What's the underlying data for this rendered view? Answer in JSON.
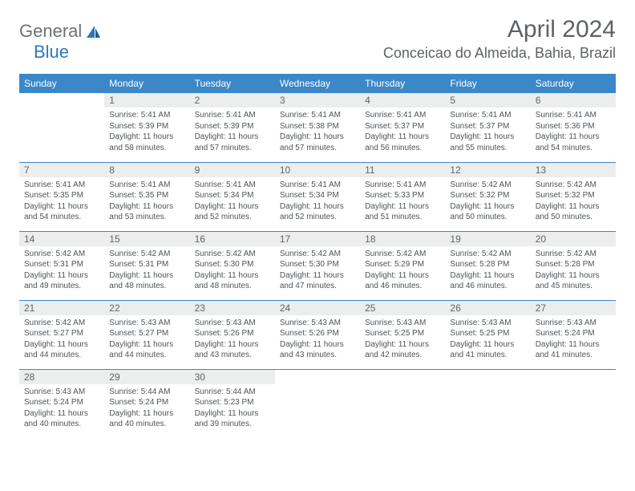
{
  "logo": {
    "general": "General",
    "blue": "Blue"
  },
  "title": "April 2024",
  "location": "Conceicao do Almeida, Bahia, Brazil",
  "colors": {
    "header_bg": "#3b87c8",
    "header_text": "#ffffff",
    "daynum_bg": "#eceded",
    "text": "#5d6268",
    "row_border": "#3b87c8"
  },
  "day_headers": [
    "Sunday",
    "Monday",
    "Tuesday",
    "Wednesday",
    "Thursday",
    "Friday",
    "Saturday"
  ],
  "weeks": [
    [
      {
        "n": "",
        "sr": "",
        "ss": "",
        "dl": ""
      },
      {
        "n": "1",
        "sr": "Sunrise: 5:41 AM",
        "ss": "Sunset: 5:39 PM",
        "dl": "Daylight: 11 hours and 58 minutes."
      },
      {
        "n": "2",
        "sr": "Sunrise: 5:41 AM",
        "ss": "Sunset: 5:39 PM",
        "dl": "Daylight: 11 hours and 57 minutes."
      },
      {
        "n": "3",
        "sr": "Sunrise: 5:41 AM",
        "ss": "Sunset: 5:38 PM",
        "dl": "Daylight: 11 hours and 57 minutes."
      },
      {
        "n": "4",
        "sr": "Sunrise: 5:41 AM",
        "ss": "Sunset: 5:37 PM",
        "dl": "Daylight: 11 hours and 56 minutes."
      },
      {
        "n": "5",
        "sr": "Sunrise: 5:41 AM",
        "ss": "Sunset: 5:37 PM",
        "dl": "Daylight: 11 hours and 55 minutes."
      },
      {
        "n": "6",
        "sr": "Sunrise: 5:41 AM",
        "ss": "Sunset: 5:36 PM",
        "dl": "Daylight: 11 hours and 54 minutes."
      }
    ],
    [
      {
        "n": "7",
        "sr": "Sunrise: 5:41 AM",
        "ss": "Sunset: 5:35 PM",
        "dl": "Daylight: 11 hours and 54 minutes."
      },
      {
        "n": "8",
        "sr": "Sunrise: 5:41 AM",
        "ss": "Sunset: 5:35 PM",
        "dl": "Daylight: 11 hours and 53 minutes."
      },
      {
        "n": "9",
        "sr": "Sunrise: 5:41 AM",
        "ss": "Sunset: 5:34 PM",
        "dl": "Daylight: 11 hours and 52 minutes."
      },
      {
        "n": "10",
        "sr": "Sunrise: 5:41 AM",
        "ss": "Sunset: 5:34 PM",
        "dl": "Daylight: 11 hours and 52 minutes."
      },
      {
        "n": "11",
        "sr": "Sunrise: 5:41 AM",
        "ss": "Sunset: 5:33 PM",
        "dl": "Daylight: 11 hours and 51 minutes."
      },
      {
        "n": "12",
        "sr": "Sunrise: 5:42 AM",
        "ss": "Sunset: 5:32 PM",
        "dl": "Daylight: 11 hours and 50 minutes."
      },
      {
        "n": "13",
        "sr": "Sunrise: 5:42 AM",
        "ss": "Sunset: 5:32 PM",
        "dl": "Daylight: 11 hours and 50 minutes."
      }
    ],
    [
      {
        "n": "14",
        "sr": "Sunrise: 5:42 AM",
        "ss": "Sunset: 5:31 PM",
        "dl": "Daylight: 11 hours and 49 minutes."
      },
      {
        "n": "15",
        "sr": "Sunrise: 5:42 AM",
        "ss": "Sunset: 5:31 PM",
        "dl": "Daylight: 11 hours and 48 minutes."
      },
      {
        "n": "16",
        "sr": "Sunrise: 5:42 AM",
        "ss": "Sunset: 5:30 PM",
        "dl": "Daylight: 11 hours and 48 minutes."
      },
      {
        "n": "17",
        "sr": "Sunrise: 5:42 AM",
        "ss": "Sunset: 5:30 PM",
        "dl": "Daylight: 11 hours and 47 minutes."
      },
      {
        "n": "18",
        "sr": "Sunrise: 5:42 AM",
        "ss": "Sunset: 5:29 PM",
        "dl": "Daylight: 11 hours and 46 minutes."
      },
      {
        "n": "19",
        "sr": "Sunrise: 5:42 AM",
        "ss": "Sunset: 5:28 PM",
        "dl": "Daylight: 11 hours and 46 minutes."
      },
      {
        "n": "20",
        "sr": "Sunrise: 5:42 AM",
        "ss": "Sunset: 5:28 PM",
        "dl": "Daylight: 11 hours and 45 minutes."
      }
    ],
    [
      {
        "n": "21",
        "sr": "Sunrise: 5:42 AM",
        "ss": "Sunset: 5:27 PM",
        "dl": "Daylight: 11 hours and 44 minutes."
      },
      {
        "n": "22",
        "sr": "Sunrise: 5:43 AM",
        "ss": "Sunset: 5:27 PM",
        "dl": "Daylight: 11 hours and 44 minutes."
      },
      {
        "n": "23",
        "sr": "Sunrise: 5:43 AM",
        "ss": "Sunset: 5:26 PM",
        "dl": "Daylight: 11 hours and 43 minutes."
      },
      {
        "n": "24",
        "sr": "Sunrise: 5:43 AM",
        "ss": "Sunset: 5:26 PM",
        "dl": "Daylight: 11 hours and 43 minutes."
      },
      {
        "n": "25",
        "sr": "Sunrise: 5:43 AM",
        "ss": "Sunset: 5:25 PM",
        "dl": "Daylight: 11 hours and 42 minutes."
      },
      {
        "n": "26",
        "sr": "Sunrise: 5:43 AM",
        "ss": "Sunset: 5:25 PM",
        "dl": "Daylight: 11 hours and 41 minutes."
      },
      {
        "n": "27",
        "sr": "Sunrise: 5:43 AM",
        "ss": "Sunset: 5:24 PM",
        "dl": "Daylight: 11 hours and 41 minutes."
      }
    ],
    [
      {
        "n": "28",
        "sr": "Sunrise: 5:43 AM",
        "ss": "Sunset: 5:24 PM",
        "dl": "Daylight: 11 hours and 40 minutes."
      },
      {
        "n": "29",
        "sr": "Sunrise: 5:44 AM",
        "ss": "Sunset: 5:24 PM",
        "dl": "Daylight: 11 hours and 40 minutes."
      },
      {
        "n": "30",
        "sr": "Sunrise: 5:44 AM",
        "ss": "Sunset: 5:23 PM",
        "dl": "Daylight: 11 hours and 39 minutes."
      },
      {
        "n": "",
        "sr": "",
        "ss": "",
        "dl": ""
      },
      {
        "n": "",
        "sr": "",
        "ss": "",
        "dl": ""
      },
      {
        "n": "",
        "sr": "",
        "ss": "",
        "dl": ""
      },
      {
        "n": "",
        "sr": "",
        "ss": "",
        "dl": ""
      }
    ]
  ]
}
